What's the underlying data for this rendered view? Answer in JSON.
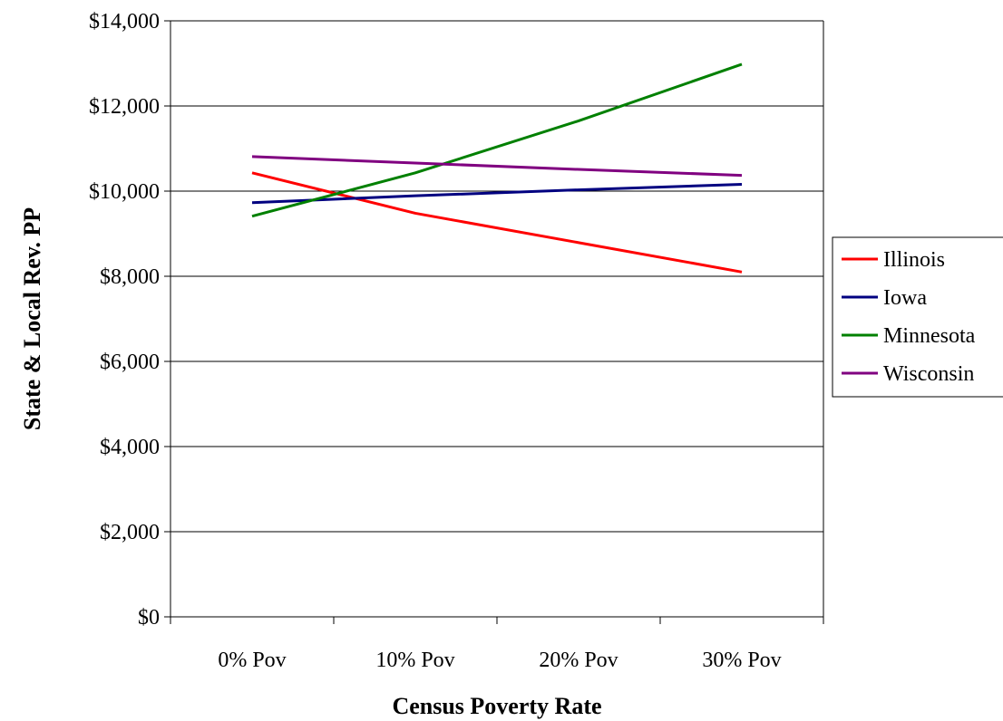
{
  "chart_data": {
    "type": "line",
    "title": "",
    "xlabel": "Census Poverty Rate",
    "ylabel": "State & Local Rev. PP",
    "categories": [
      "0% Pov",
      "10% Pov",
      "20% Pov",
      "30% Pov"
    ],
    "ylim": [
      0,
      14000
    ],
    "ytick_values": [
      0,
      2000,
      4000,
      6000,
      8000,
      10000,
      12000,
      14000
    ],
    "ytick_labels": [
      "$0",
      "$2,000",
      "$4,000",
      "$6,000",
      "$8,000",
      "$10,000",
      "$12,000",
      "$14,000"
    ],
    "grid": "horizontal",
    "legend_position": "right",
    "series": [
      {
        "name": "Illinois",
        "color": "#ff0000",
        "values": [
          10430,
          9480,
          8790,
          8100
        ]
      },
      {
        "name": "Iowa",
        "color": "#000080",
        "values": [
          9730,
          9890,
          10030,
          10160
        ]
      },
      {
        "name": "Minnesota",
        "color": "#008000",
        "values": [
          9410,
          10430,
          11650,
          12980
        ]
      },
      {
        "name": "Wisconsin",
        "color": "#800080",
        "values": [
          10810,
          10660,
          10510,
          10370
        ]
      }
    ]
  }
}
